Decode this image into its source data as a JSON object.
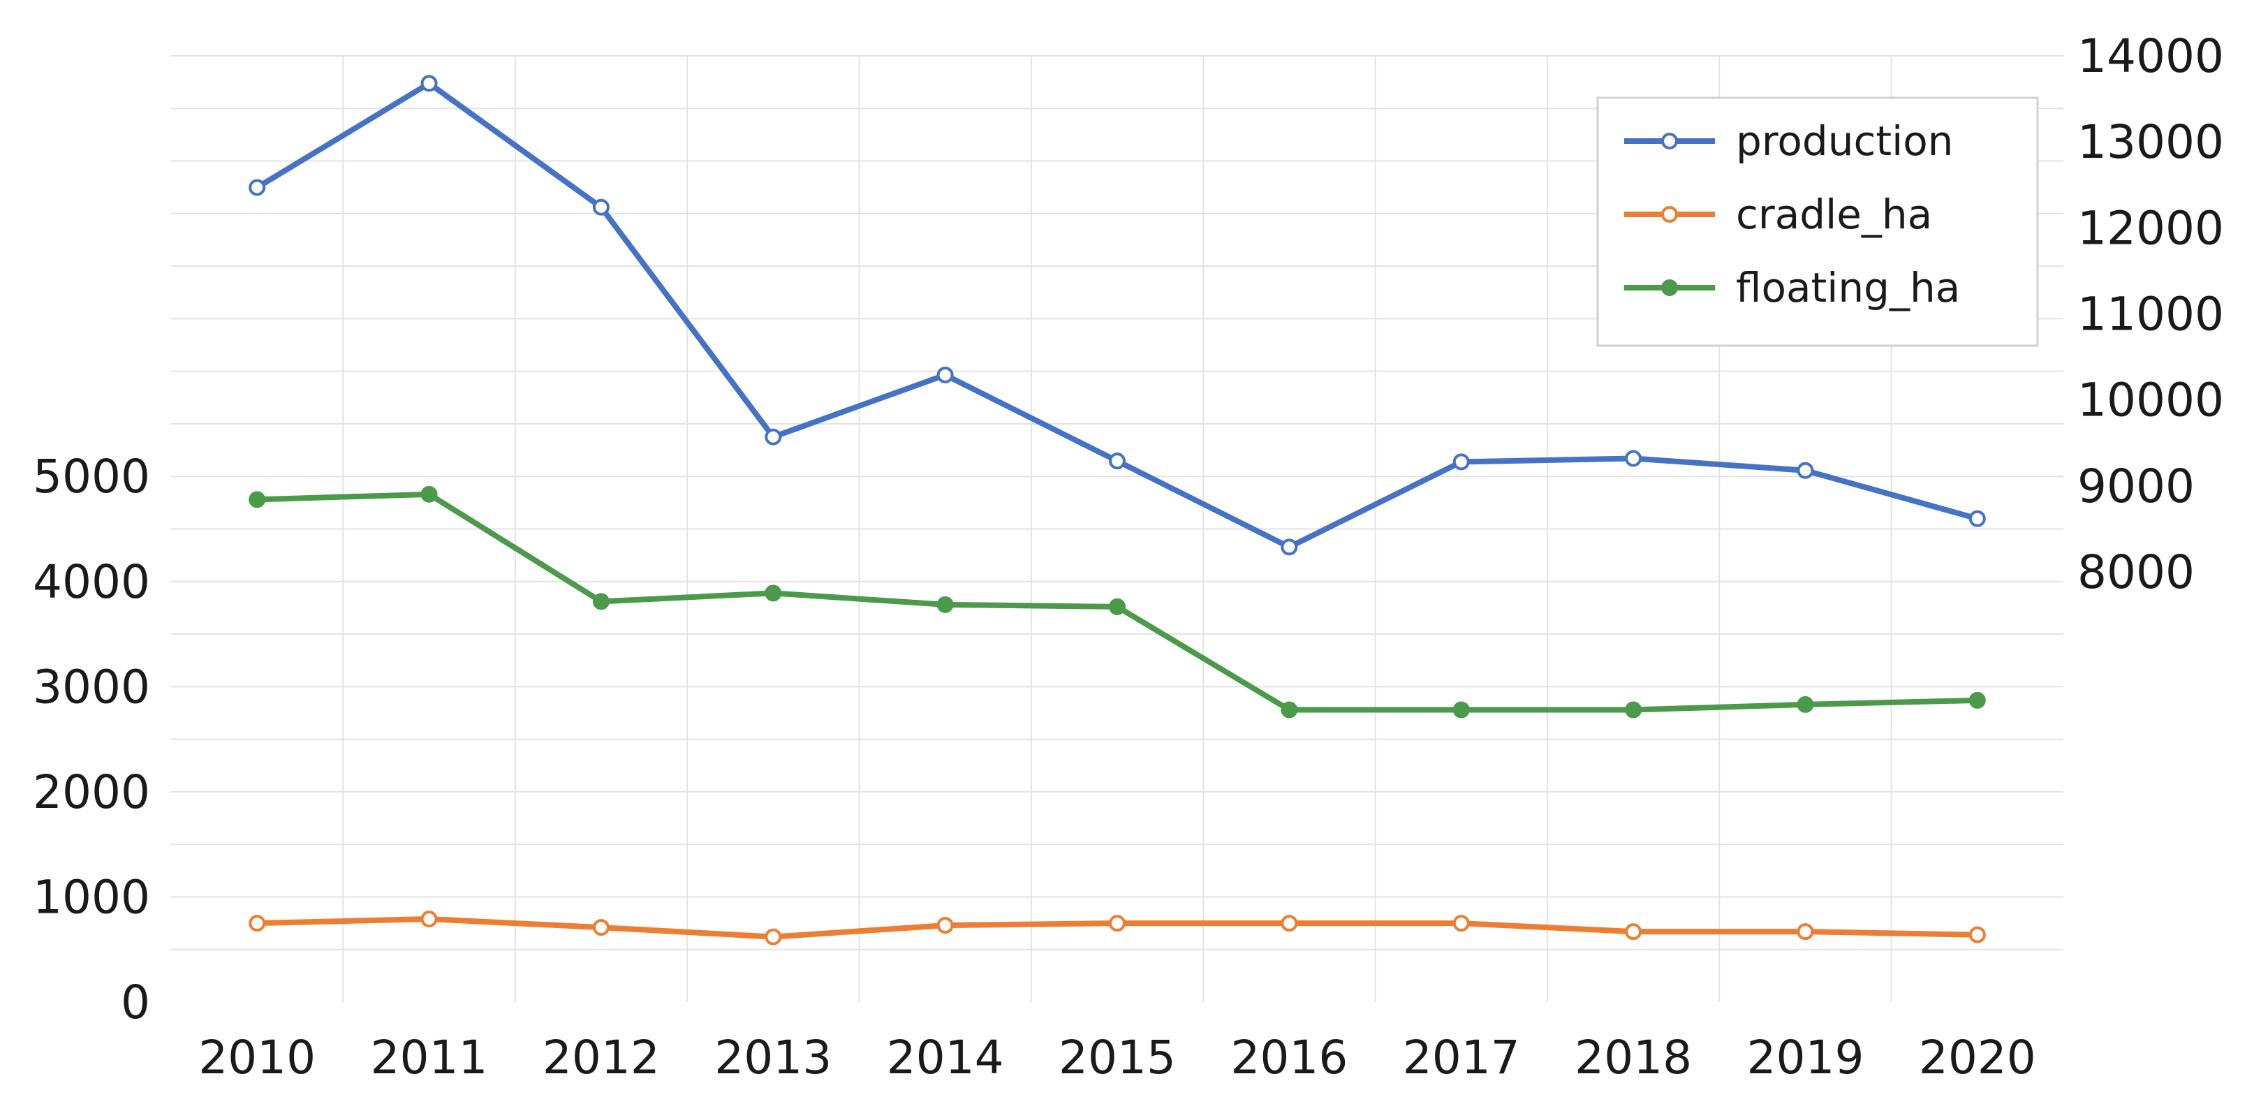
{
  "chart_data": {
    "type": "line",
    "title": "",
    "xlabel": "",
    "ylabel": "",
    "y2label": "",
    "categories": [
      "2010",
      "2011",
      "2012",
      "2013",
      "2014",
      "2015",
      "2016",
      "2017",
      "2018",
      "2019",
      "2020"
    ],
    "ylim": [
      0,
      9000
    ],
    "y_ticks": [
      0,
      1000,
      2000,
      3000,
      4000,
      5000
    ],
    "y2lim": [
      3000,
      14000
    ],
    "y2_ticks": [
      8000,
      9000,
      10000,
      11000,
      12000,
      13000,
      14000
    ],
    "grid": true,
    "legend_position": "top-right",
    "series": [
      {
        "name": "production",
        "axis": "right",
        "color": "#4472c4",
        "marker": "open-circle",
        "values": [
          12470,
          13680,
          12240,
          9570,
          10290,
          9290,
          8290,
          9280,
          9320,
          9180,
          8620
        ]
      },
      {
        "name": "cradle_ha",
        "axis": "left",
        "color": "#ed7d31",
        "marker": "open-circle",
        "values": [
          750,
          790,
          710,
          620,
          730,
          750,
          750,
          750,
          670,
          670,
          640
        ]
      },
      {
        "name": "floating_ha",
        "axis": "left",
        "color": "#4a9a4a",
        "marker": "filled-circle",
        "values": [
          4780,
          4830,
          3810,
          3890,
          3780,
          3760,
          2780,
          2780,
          2780,
          2830,
          2870
        ]
      }
    ]
  }
}
